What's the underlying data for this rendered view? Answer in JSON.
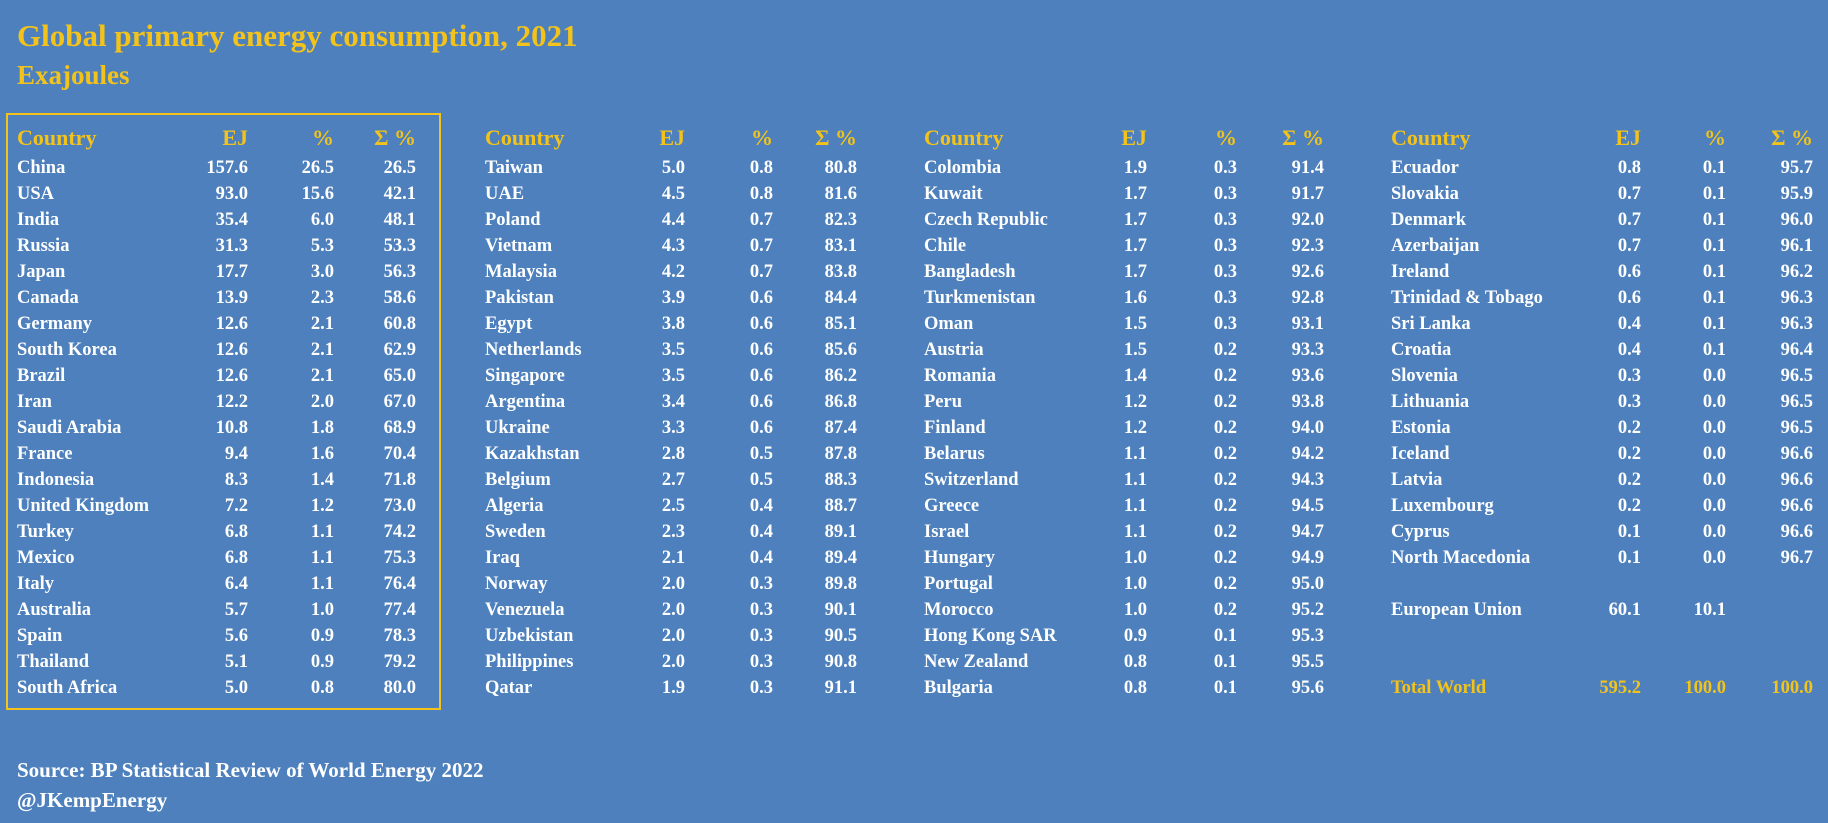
{
  "header": {
    "title": "Global primary energy consumption, 2021",
    "subtitle": "Exajoules"
  },
  "colors": {
    "background": "#4d80bc",
    "accent": "#f3c31b",
    "text": "#ffffff"
  },
  "column_headers": {
    "country": "Country",
    "ej": "EJ",
    "pct": "%",
    "cum": "Σ %"
  },
  "columns": [
    [
      {
        "country": "China",
        "ej": "157.6",
        "pct": "26.5",
        "cum": "26.5"
      },
      {
        "country": "USA",
        "ej": "93.0",
        "pct": "15.6",
        "cum": "42.1"
      },
      {
        "country": "India",
        "ej": "35.4",
        "pct": "6.0",
        "cum": "48.1"
      },
      {
        "country": "Russia",
        "ej": "31.3",
        "pct": "5.3",
        "cum": "53.3"
      },
      {
        "country": "Japan",
        "ej": "17.7",
        "pct": "3.0",
        "cum": "56.3"
      },
      {
        "country": "Canada",
        "ej": "13.9",
        "pct": "2.3",
        "cum": "58.6"
      },
      {
        "country": "Germany",
        "ej": "12.6",
        "pct": "2.1",
        "cum": "60.8"
      },
      {
        "country": "South Korea",
        "ej": "12.6",
        "pct": "2.1",
        "cum": "62.9"
      },
      {
        "country": "Brazil",
        "ej": "12.6",
        "pct": "2.1",
        "cum": "65.0"
      },
      {
        "country": "Iran",
        "ej": "12.2",
        "pct": "2.0",
        "cum": "67.0"
      },
      {
        "country": "Saudi Arabia",
        "ej": "10.8",
        "pct": "1.8",
        "cum": "68.9"
      },
      {
        "country": "France",
        "ej": "9.4",
        "pct": "1.6",
        "cum": "70.4"
      },
      {
        "country": "Indonesia",
        "ej": "8.3",
        "pct": "1.4",
        "cum": "71.8"
      },
      {
        "country": "United Kingdom",
        "ej": "7.2",
        "pct": "1.2",
        "cum": "73.0"
      },
      {
        "country": "Turkey",
        "ej": "6.8",
        "pct": "1.1",
        "cum": "74.2"
      },
      {
        "country": "Mexico",
        "ej": "6.8",
        "pct": "1.1",
        "cum": "75.3"
      },
      {
        "country": "Italy",
        "ej": "6.4",
        "pct": "1.1",
        "cum": "76.4"
      },
      {
        "country": "Australia",
        "ej": "5.7",
        "pct": "1.0",
        "cum": "77.4"
      },
      {
        "country": "Spain",
        "ej": "5.6",
        "pct": "0.9",
        "cum": "78.3"
      },
      {
        "country": "Thailand",
        "ej": "5.1",
        "pct": "0.9",
        "cum": "79.2"
      },
      {
        "country": "South Africa",
        "ej": "5.0",
        "pct": "0.8",
        "cum": "80.0"
      }
    ],
    [
      {
        "country": "Taiwan",
        "ej": "5.0",
        "pct": "0.8",
        "cum": "80.8"
      },
      {
        "country": "UAE",
        "ej": "4.5",
        "pct": "0.8",
        "cum": "81.6"
      },
      {
        "country": "Poland",
        "ej": "4.4",
        "pct": "0.7",
        "cum": "82.3"
      },
      {
        "country": "Vietnam",
        "ej": "4.3",
        "pct": "0.7",
        "cum": "83.1"
      },
      {
        "country": "Malaysia",
        "ej": "4.2",
        "pct": "0.7",
        "cum": "83.8"
      },
      {
        "country": "Pakistan",
        "ej": "3.9",
        "pct": "0.6",
        "cum": "84.4"
      },
      {
        "country": "Egypt",
        "ej": "3.8",
        "pct": "0.6",
        "cum": "85.1"
      },
      {
        "country": "Netherlands",
        "ej": "3.5",
        "pct": "0.6",
        "cum": "85.6"
      },
      {
        "country": "Singapore",
        "ej": "3.5",
        "pct": "0.6",
        "cum": "86.2"
      },
      {
        "country": "Argentina",
        "ej": "3.4",
        "pct": "0.6",
        "cum": "86.8"
      },
      {
        "country": "Ukraine",
        "ej": "3.3",
        "pct": "0.6",
        "cum": "87.4"
      },
      {
        "country": "Kazakhstan",
        "ej": "2.8",
        "pct": "0.5",
        "cum": "87.8"
      },
      {
        "country": "Belgium",
        "ej": "2.7",
        "pct": "0.5",
        "cum": "88.3"
      },
      {
        "country": "Algeria",
        "ej": "2.5",
        "pct": "0.4",
        "cum": "88.7"
      },
      {
        "country": "Sweden",
        "ej": "2.3",
        "pct": "0.4",
        "cum": "89.1"
      },
      {
        "country": "Iraq",
        "ej": "2.1",
        "pct": "0.4",
        "cum": "89.4"
      },
      {
        "country": "Norway",
        "ej": "2.0",
        "pct": "0.3",
        "cum": "89.8"
      },
      {
        "country": "Venezuela",
        "ej": "2.0",
        "pct": "0.3",
        "cum": "90.1"
      },
      {
        "country": "Uzbekistan",
        "ej": "2.0",
        "pct": "0.3",
        "cum": "90.5"
      },
      {
        "country": "Philippines",
        "ej": "2.0",
        "pct": "0.3",
        "cum": "90.8"
      },
      {
        "country": "Qatar",
        "ej": "1.9",
        "pct": "0.3",
        "cum": "91.1"
      }
    ],
    [
      {
        "country": "Colombia",
        "ej": "1.9",
        "pct": "0.3",
        "cum": "91.4"
      },
      {
        "country": "Kuwait",
        "ej": "1.7",
        "pct": "0.3",
        "cum": "91.7"
      },
      {
        "country": "Czech Republic",
        "ej": "1.7",
        "pct": "0.3",
        "cum": "92.0"
      },
      {
        "country": "Chile",
        "ej": "1.7",
        "pct": "0.3",
        "cum": "92.3"
      },
      {
        "country": "Bangladesh",
        "ej": "1.7",
        "pct": "0.3",
        "cum": "92.6"
      },
      {
        "country": "Turkmenistan",
        "ej": "1.6",
        "pct": "0.3",
        "cum": "92.8"
      },
      {
        "country": "Oman",
        "ej": "1.5",
        "pct": "0.3",
        "cum": "93.1"
      },
      {
        "country": "Austria",
        "ej": "1.5",
        "pct": "0.2",
        "cum": "93.3"
      },
      {
        "country": "Romania",
        "ej": "1.4",
        "pct": "0.2",
        "cum": "93.6"
      },
      {
        "country": "Peru",
        "ej": "1.2",
        "pct": "0.2",
        "cum": "93.8"
      },
      {
        "country": "Finland",
        "ej": "1.2",
        "pct": "0.2",
        "cum": "94.0"
      },
      {
        "country": "Belarus",
        "ej": "1.1",
        "pct": "0.2",
        "cum": "94.2"
      },
      {
        "country": "Switzerland",
        "ej": "1.1",
        "pct": "0.2",
        "cum": "94.3"
      },
      {
        "country": "Greece",
        "ej": "1.1",
        "pct": "0.2",
        "cum": "94.5"
      },
      {
        "country": "Israel",
        "ej": "1.1",
        "pct": "0.2",
        "cum": "94.7"
      },
      {
        "country": "Hungary",
        "ej": "1.0",
        "pct": "0.2",
        "cum": "94.9"
      },
      {
        "country": "Portugal",
        "ej": "1.0",
        "pct": "0.2",
        "cum": "95.0"
      },
      {
        "country": "Morocco",
        "ej": "1.0",
        "pct": "0.2",
        "cum": "95.2"
      },
      {
        "country": "Hong Kong SAR",
        "ej": "0.9",
        "pct": "0.1",
        "cum": "95.3"
      },
      {
        "country": "New Zealand",
        "ej": "0.8",
        "pct": "0.1",
        "cum": "95.5"
      },
      {
        "country": "Bulgaria",
        "ej": "0.8",
        "pct": "0.1",
        "cum": "95.6"
      }
    ],
    [
      {
        "country": "Ecuador",
        "ej": "0.8",
        "pct": "0.1",
        "cum": "95.7"
      },
      {
        "country": "Slovakia",
        "ej": "0.7",
        "pct": "0.1",
        "cum": "95.9"
      },
      {
        "country": "Denmark",
        "ej": "0.7",
        "pct": "0.1",
        "cum": "96.0"
      },
      {
        "country": "Azerbaijan",
        "ej": "0.7",
        "pct": "0.1",
        "cum": "96.1"
      },
      {
        "country": "Ireland",
        "ej": "0.6",
        "pct": "0.1",
        "cum": "96.2"
      },
      {
        "country": "Trinidad & Tobago",
        "ej": "0.6",
        "pct": "0.1",
        "cum": "96.3"
      },
      {
        "country": "Sri Lanka",
        "ej": "0.4",
        "pct": "0.1",
        "cum": "96.3"
      },
      {
        "country": "Croatia",
        "ej": "0.4",
        "pct": "0.1",
        "cum": "96.4"
      },
      {
        "country": "Slovenia",
        "ej": "0.3",
        "pct": "0.0",
        "cum": "96.5"
      },
      {
        "country": "Lithuania",
        "ej": "0.3",
        "pct": "0.0",
        "cum": "96.5"
      },
      {
        "country": "Estonia",
        "ej": "0.2",
        "pct": "0.0",
        "cum": "96.5"
      },
      {
        "country": "Iceland",
        "ej": "0.2",
        "pct": "0.0",
        "cum": "96.6"
      },
      {
        "country": "Latvia",
        "ej": "0.2",
        "pct": "0.0",
        "cum": "96.6"
      },
      {
        "country": "Luxembourg",
        "ej": "0.2",
        "pct": "0.0",
        "cum": "96.6"
      },
      {
        "country": "Cyprus",
        "ej": "0.1",
        "pct": "0.0",
        "cum": "96.6"
      },
      {
        "country": "North Macedonia",
        "ej": "0.1",
        "pct": "0.0",
        "cum": "96.7"
      },
      {
        "spacer": true
      },
      {
        "country": "European Union",
        "ej": "60.1",
        "pct": "10.1",
        "cum": ""
      },
      {
        "spacer": true
      },
      {
        "spacer": true
      },
      {
        "country": "Total World",
        "ej": "595.2",
        "pct": "100.0",
        "cum": "100.0",
        "total": true
      }
    ]
  ],
  "footer": {
    "source": "Source: BP Statistical Review of World Energy 2022",
    "handle": "@JKempEnergy"
  }
}
